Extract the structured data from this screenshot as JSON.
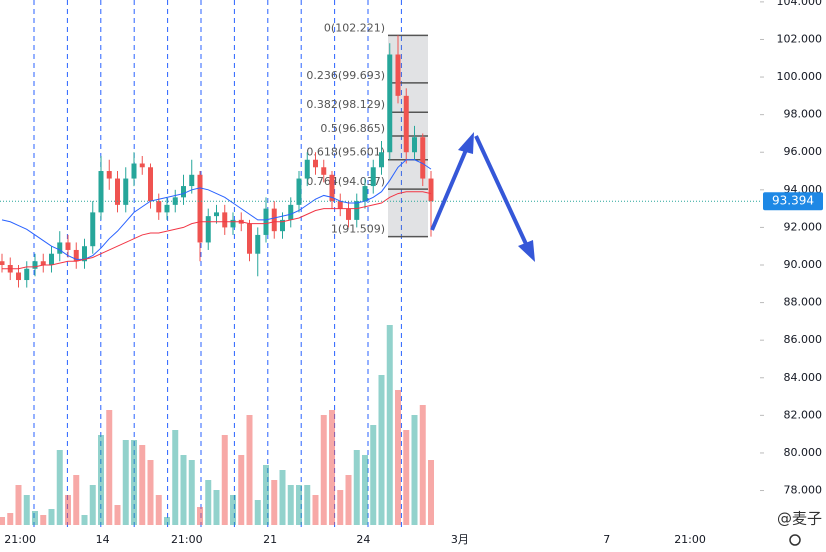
{
  "chart_data": {
    "type": "candlestick",
    "up_color": "#26a69a",
    "down_color": "#ef5350",
    "candles": [
      [
        90.2,
        90.6,
        89.6,
        90.0
      ],
      [
        90.0,
        90.4,
        89.2,
        89.6
      ],
      [
        89.6,
        90.0,
        88.8,
        89.2
      ],
      [
        89.2,
        90.2,
        88.8,
        89.8
      ],
      [
        89.8,
        90.6,
        89.4,
        90.2
      ],
      [
        90.2,
        90.6,
        89.6,
        90.0
      ],
      [
        90.0,
        91.0,
        89.6,
        90.6
      ],
      [
        90.6,
        91.8,
        90.2,
        91.2
      ],
      [
        91.2,
        91.6,
        90.4,
        90.8
      ],
      [
        90.8,
        91.2,
        89.8,
        90.2
      ],
      [
        90.2,
        91.4,
        89.8,
        91.0
      ],
      [
        91.0,
        93.4,
        90.6,
        92.8
      ],
      [
        92.8,
        95.8,
        92.4,
        95.0
      ],
      [
        95.0,
        95.6,
        94.0,
        94.6
      ],
      [
        94.6,
        95.0,
        92.8,
        93.2
      ],
      [
        93.2,
        95.2,
        92.8,
        94.6
      ],
      [
        94.6,
        96.0,
        94.2,
        95.4
      ],
      [
        95.4,
        95.8,
        94.8,
        95.2
      ],
      [
        95.2,
        95.4,
        93.0,
        93.4
      ],
      [
        93.4,
        93.8,
        92.4,
        92.8
      ],
      [
        92.8,
        93.6,
        92.4,
        93.2
      ],
      [
        93.2,
        94.0,
        92.8,
        93.6
      ],
      [
        93.6,
        94.8,
        93.2,
        94.2
      ],
      [
        94.2,
        95.6,
        93.8,
        94.8
      ],
      [
        94.8,
        95.0,
        90.2,
        91.2
      ],
      [
        91.2,
        93.0,
        90.8,
        92.6
      ],
      [
        92.6,
        93.2,
        92.2,
        92.8
      ],
      [
        92.8,
        93.2,
        91.6,
        92.0
      ],
      [
        92.0,
        92.8,
        91.6,
        92.4
      ],
      [
        92.4,
        92.8,
        91.8,
        92.2
      ],
      [
        92.2,
        92.4,
        90.2,
        90.6
      ],
      [
        90.6,
        92.0,
        89.4,
        91.6
      ],
      [
        91.6,
        93.6,
        91.2,
        93.0
      ],
      [
        93.0,
        93.4,
        91.4,
        91.8
      ],
      [
        91.8,
        92.8,
        91.4,
        92.4
      ],
      [
        92.4,
        93.6,
        92.0,
        93.2
      ],
      [
        93.2,
        95.0,
        92.8,
        94.6
      ],
      [
        94.6,
        96.0,
        94.2,
        95.6
      ],
      [
        95.6,
        96.0,
        94.8,
        95.2
      ],
      [
        95.2,
        95.6,
        94.4,
        94.8
      ],
      [
        94.8,
        95.0,
        93.0,
        93.4
      ],
      [
        93.4,
        93.8,
        92.6,
        93.0
      ],
      [
        93.0,
        93.4,
        92.0,
        92.4
      ],
      [
        92.4,
        93.8,
        92.0,
        93.4
      ],
      [
        93.4,
        94.6,
        93.0,
        94.2
      ],
      [
        94.2,
        95.6,
        93.8,
        95.2
      ],
      [
        95.2,
        96.6,
        94.8,
        96.0
      ],
      [
        96.0,
        101.8,
        95.6,
        101.2
      ],
      [
        101.2,
        102.221,
        98.6,
        99.0
      ],
      [
        99.0,
        99.4,
        95.4,
        96.0
      ],
      [
        96.0,
        97.4,
        95.6,
        96.8
      ],
      [
        96.8,
        97.0,
        94.2,
        94.6
      ],
      [
        94.6,
        95.0,
        91.509,
        93.394
      ]
    ],
    "volume": [
      8,
      12,
      40,
      30,
      14,
      10,
      16,
      75,
      30,
      50,
      10,
      40,
      90,
      115,
      20,
      85,
      85,
      80,
      65,
      30,
      8,
      95,
      70,
      65,
      18,
      45,
      35,
      90,
      30,
      70,
      110,
      25,
      60,
      45,
      55,
      40,
      40,
      40,
      30,
      110,
      115,
      35,
      50,
      75,
      70,
      100,
      150,
      200,
      135,
      95,
      110,
      120,
      65
    ],
    "series": [
      {
        "color": "#2962ff",
        "values": [
          92.4,
          92.3,
          92.1,
          91.9,
          91.6,
          91.3,
          91.0,
          90.8,
          90.5,
          90.3,
          90.3,
          90.5,
          90.9,
          91.4,
          91.8,
          92.3,
          92.8,
          93.1,
          93.4,
          93.5,
          93.6,
          93.7,
          93.8,
          94.0,
          94.1,
          94.0,
          93.8,
          93.6,
          93.3,
          93.0,
          92.7,
          92.4,
          92.4,
          92.5,
          92.6,
          92.7,
          92.9,
          93.2,
          93.5,
          93.7,
          93.6,
          93.4,
          93.3,
          93.3,
          93.4,
          93.6,
          93.9,
          94.5,
          95.2,
          95.6,
          95.6,
          95.4,
          95.1
        ]
      },
      {
        "color": "#f23645",
        "values": [
          89.8,
          89.8,
          89.8,
          89.9,
          89.9,
          90.0,
          90.0,
          90.1,
          90.2,
          90.2,
          90.3,
          90.4,
          90.6,
          90.8,
          91.0,
          91.2,
          91.4,
          91.6,
          91.7,
          91.7,
          91.8,
          91.9,
          92.0,
          92.2,
          92.3,
          92.3,
          92.3,
          92.3,
          92.3,
          92.3,
          92.2,
          92.2,
          92.2,
          92.3,
          92.3,
          92.4,
          92.5,
          92.7,
          92.9,
          93.0,
          93.0,
          93.0,
          93.0,
          93.0,
          93.1,
          93.2,
          93.3,
          93.6,
          93.8,
          93.9,
          93.9,
          93.9,
          93.8
        ]
      }
    ],
    "ylim": [
      75.9,
      104.1
    ],
    "yticks": [
      {
        "value": 78,
        "label": "78.000"
      },
      {
        "value": 80,
        "label": "80.000"
      },
      {
        "value": 82,
        "label": "82.000"
      },
      {
        "value": 84,
        "label": "84.000"
      },
      {
        "value": 86,
        "label": "86.000"
      },
      {
        "value": 88,
        "label": "88.000"
      },
      {
        "value": 90,
        "label": "90.000"
      },
      {
        "value": 92,
        "label": "92.000"
      },
      {
        "value": 94,
        "label": "94.000"
      },
      {
        "value": 96,
        "label": "96.000"
      },
      {
        "value": 98,
        "label": "98.000"
      },
      {
        "value": 100,
        "label": "100.000"
      },
      {
        "value": 102,
        "label": "102.000"
      },
      {
        "value": 104,
        "label": "104.000"
      }
    ],
    "xticks": [
      {
        "value": 2.2,
        "label": "21:00"
      },
      {
        "value": 12.2,
        "label": "14"
      },
      {
        "value": 22.4,
        "label": "21:00"
      },
      {
        "value": 32.5,
        "label": "21"
      },
      {
        "value": 43.8,
        "label": "24"
      },
      {
        "value": 55.5,
        "label": "3月"
      },
      {
        "value": 73.3,
        "label": "7"
      },
      {
        "value": 83.4,
        "label": "21:00"
      }
    ],
    "last_price": 93.394,
    "fib_levels": [
      {
        "value": 102.221,
        "label": "0(102.221)"
      },
      {
        "value": 99.693,
        "label": "0.236(99.693)"
      },
      {
        "value": 98.129,
        "label": "0.382(98.129)"
      },
      {
        "value": 96.865,
        "label": "0.5(96.865)"
      },
      {
        "value": 95.601,
        "label": "0.618(95.601)"
      },
      {
        "value": 94.037,
        "label": "0.764(94.037)"
      },
      {
        "value": 91.509,
        "label": "1(91.509)"
      }
    ],
    "watermark": "@麦子"
  }
}
